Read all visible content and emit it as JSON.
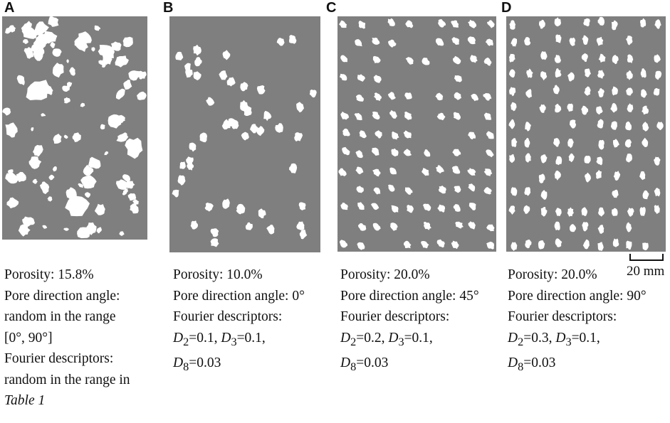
{
  "figure": {
    "panels": [
      {
        "id": "A",
        "letter": "A",
        "arrangement": "random",
        "caption": {
          "porosity": "Porosity: 15.8%",
          "angle_a": "Pore direction angle:",
          "angle_b": "random in the range",
          "angle_c": "[0°, 90°]",
          "fourier_a": "Fourier descriptors:",
          "fourier_b": "random in the range in",
          "fourier_c": "Table 1"
        }
      },
      {
        "id": "B",
        "letter": "B",
        "arrangement": "sparse-upright",
        "caption": {
          "porosity": "Porosity: 10.0%",
          "angle": "Pore direction angle: 0°",
          "fourier": "Fourier descriptors:",
          "d2_label": "D",
          "d2_sub": "2",
          "d2_val": "=0.1, ",
          "d3_label": "D",
          "d3_sub": "3",
          "d3_val": "=0.1,",
          "d8_label": "D",
          "d8_sub": "8",
          "d8_val": "=0.03"
        }
      },
      {
        "id": "C",
        "letter": "C",
        "arrangement": "rows-45",
        "caption": {
          "porosity": "Porosity: 20.0%",
          "angle": "Pore direction angle: 45°",
          "fourier": "Fourier descriptors:",
          "d2_label": "D",
          "d2_sub": "2",
          "d2_val": "=0.2, ",
          "d3_label": "D",
          "d3_sub": "3",
          "d3_val": "=0.1,",
          "d8_label": "D",
          "d8_sub": "8",
          "d8_val": "=0.03"
        }
      },
      {
        "id": "D",
        "letter": "D",
        "arrangement": "columns-90",
        "caption": {
          "porosity": "Porosity: 20.0%",
          "angle": "Pore direction angle: 90°",
          "fourier": "Fourier descriptors:",
          "d2_label": "D",
          "d2_sub": "2",
          "d2_val": "=0.3, ",
          "d3_label": "D",
          "d3_sub": "3",
          "d3_val": "=0.1,",
          "d8_label": "D",
          "d8_sub": "8",
          "d8_val": "=0.03"
        }
      }
    ],
    "scale_bar": {
      "label": "20 mm"
    },
    "colors": {
      "matrix": "#7f7f7f",
      "pore": "#ffffff"
    }
  }
}
